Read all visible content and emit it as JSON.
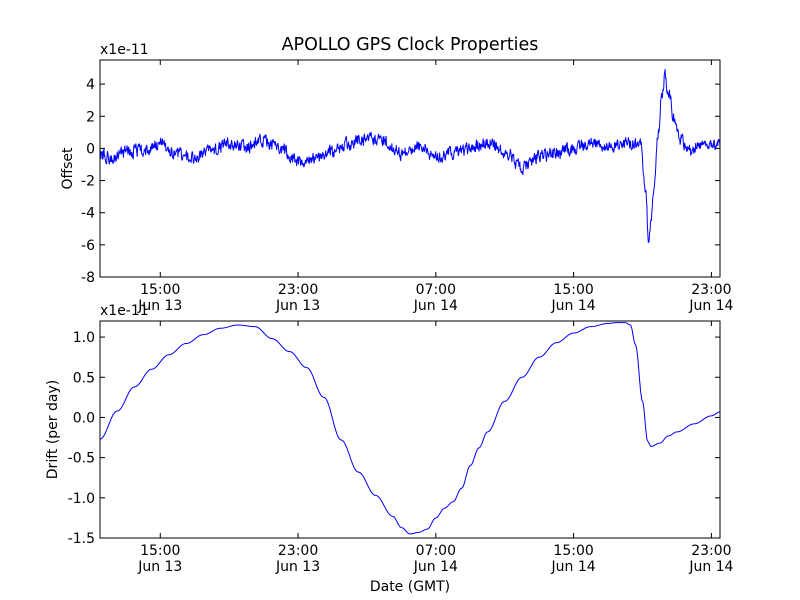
{
  "chart_data": [
    {
      "type": "line",
      "title": "APOLLO GPS Clock Properties",
      "xlabel": "",
      "ylabel": "Offset",
      "y_scale_label": "x1e-11",
      "ylim": [
        -8,
        5.5
      ],
      "y_ticks": [
        -8,
        -6,
        -4,
        -2,
        0,
        2,
        4
      ],
      "y_tick_labels": [
        "-8",
        "-6",
        "-4",
        "-2",
        "0",
        "2",
        "4"
      ],
      "xlim_hours": [
        11.5,
        47.5
      ],
      "x_ticks_hours": [
        15,
        23,
        31,
        39,
        47
      ],
      "x_tick_times": [
        "15:00",
        "23:00",
        "07:00",
        "15:00",
        "23:00"
      ],
      "x_tick_dates": [
        "Jun 13",
        "Jun 13",
        "Jun 14",
        "Jun 14",
        "Jun 14"
      ],
      "series": [
        {
          "name": "Offset",
          "color": "#0000ff",
          "noise_amplitude": 0.55,
          "x": [
            11.5,
            12.3,
            13.1,
            14.0,
            15.0,
            16.0,
            17.0,
            18.0,
            19.0,
            20.0,
            21.0,
            22.0,
            23.0,
            24.0,
            25.0,
            26.0,
            27.0,
            28.0,
            29.0,
            30.0,
            31.0,
            32.0,
            33.0,
            34.0,
            35.0,
            36.0,
            37.0,
            38.0,
            39.0,
            40.0,
            41.0,
            42.0,
            42.9,
            43.2,
            43.35,
            43.5,
            43.7,
            43.9,
            44.1,
            44.3,
            44.5,
            44.8,
            45.2,
            45.7,
            46.3,
            47.0,
            47.5
          ],
          "values": [
            -0.4,
            -0.6,
            -0.2,
            -0.1,
            0.2,
            -0.3,
            -0.6,
            -0.1,
            0.3,
            0.1,
            0.5,
            0.0,
            -0.8,
            -0.6,
            -0.2,
            0.3,
            0.6,
            0.5,
            -0.3,
            0.1,
            -0.5,
            -0.3,
            0.0,
            0.4,
            -0.2,
            -1.2,
            -0.5,
            -0.3,
            0.0,
            0.4,
            0.1,
            0.3,
            0.2,
            -3.0,
            -5.8,
            -4.5,
            -2.0,
            1.0,
            3.0,
            4.5,
            3.5,
            2.0,
            0.6,
            -0.2,
            0.4,
            0.1,
            0.4
          ]
        }
      ]
    },
    {
      "type": "line",
      "title": "",
      "xlabel": "Date (GMT)",
      "ylabel": "Drift (per day)",
      "y_scale_label": "x1e-11",
      "ylim": [
        -1.5,
        1.2
      ],
      "y_ticks": [
        -1.5,
        -1.0,
        -0.5,
        0.0,
        0.5,
        1.0
      ],
      "y_tick_labels": [
        "-1.5",
        "-1.0",
        "-0.5",
        "0.0",
        "0.5",
        "1.0"
      ],
      "xlim_hours": [
        11.5,
        47.5
      ],
      "x_ticks_hours": [
        15,
        23,
        31,
        39,
        47
      ],
      "x_tick_times": [
        "15:00",
        "23:00",
        "07:00",
        "15:00",
        "23:00"
      ],
      "x_tick_dates": [
        "Jun 13",
        "Jun 13",
        "Jun 14",
        "Jun 14",
        "Jun 14"
      ],
      "series": [
        {
          "name": "Drift",
          "color": "#0000ff",
          "x": [
            11.5,
            12.5,
            13.5,
            14.5,
            15.5,
            16.5,
            17.5,
            18.5,
            19.5,
            20.5,
            21.5,
            22.5,
            23.5,
            24.5,
            25.5,
            26.5,
            27.5,
            28.5,
            29.0,
            29.5,
            30.0,
            30.5,
            31.0,
            31.5,
            32.0,
            32.5,
            33.0,
            33.5,
            34.0,
            35.0,
            36.0,
            37.0,
            38.0,
            39.0,
            40.0,
            41.0,
            41.5,
            42.0,
            42.3,
            42.6,
            43.0,
            43.3,
            43.5,
            44.0,
            44.5,
            45.0,
            46.0,
            47.0,
            47.5
          ],
          "values": [
            -0.27,
            0.08,
            0.38,
            0.6,
            0.78,
            0.92,
            1.03,
            1.11,
            1.15,
            1.13,
            0.98,
            0.82,
            0.62,
            0.25,
            -0.28,
            -0.68,
            -0.97,
            -1.23,
            -1.37,
            -1.45,
            -1.43,
            -1.39,
            -1.25,
            -1.13,
            -1.05,
            -0.88,
            -0.6,
            -0.38,
            -0.18,
            0.2,
            0.5,
            0.75,
            0.93,
            1.05,
            1.13,
            1.17,
            1.18,
            1.18,
            1.15,
            0.9,
            0.2,
            -0.3,
            -0.36,
            -0.32,
            -0.23,
            -0.18,
            -0.08,
            0.02,
            0.07
          ]
        }
      ]
    }
  ]
}
